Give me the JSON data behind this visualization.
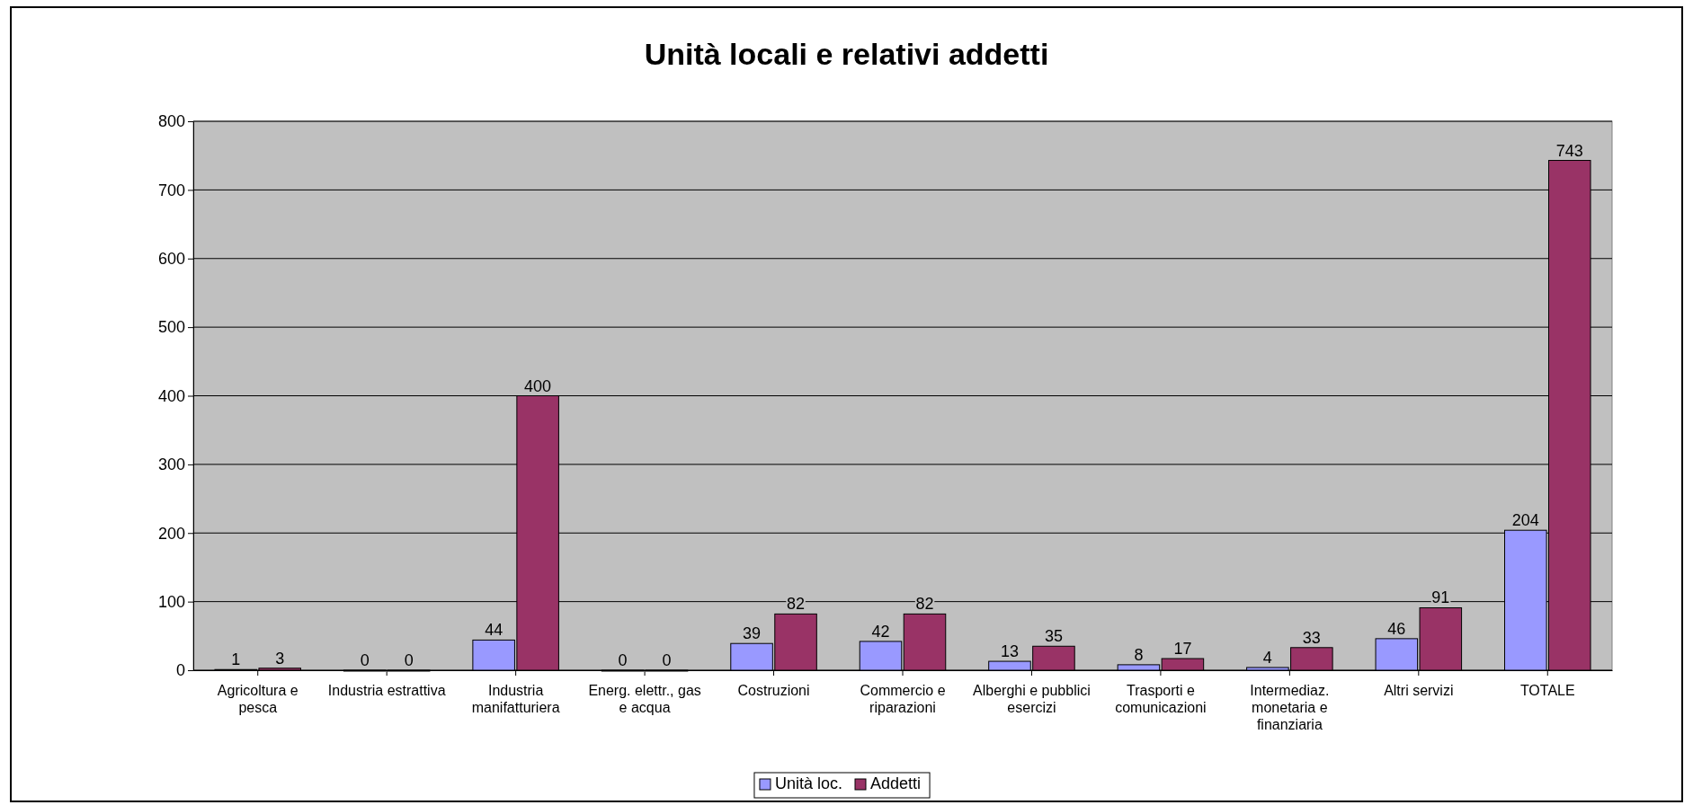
{
  "chart_data": {
    "type": "bar",
    "title": "Unità locali e relativi addetti",
    "categories": [
      "Agricoltura e pesca",
      "Industria estrattiva",
      "Industria manifatturiera",
      "Energ. elettr., gas e acqua",
      "Costruzioni",
      "Commercio e riparazioni",
      "Alberghi e pubblici esercizi",
      "Trasporti e comunicazioni",
      "Intermediaz. monetaria e finanziaria",
      "Altri servizi",
      "TOTALE"
    ],
    "series": [
      {
        "name": "Unità loc.",
        "color": "#9999ff",
        "values": [
          1,
          0,
          44,
          0,
          39,
          42,
          13,
          8,
          4,
          46,
          204
        ]
      },
      {
        "name": "Addetti",
        "color": "#993366",
        "values": [
          3,
          0,
          400,
          0,
          82,
          82,
          35,
          17,
          33,
          91,
          743
        ]
      }
    ],
    "ylim": [
      0,
      800
    ],
    "yticks": [
      0,
      100,
      200,
      300,
      400,
      500,
      600,
      700,
      800
    ],
    "grid": "y",
    "legend": "bottom",
    "data_labels": true
  }
}
